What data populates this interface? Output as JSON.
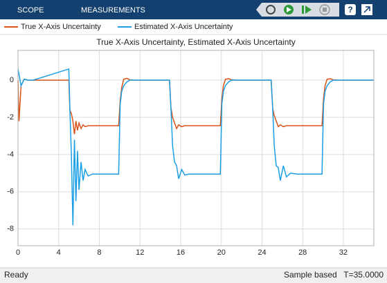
{
  "toolbar": {
    "tabs": [
      "SCOPE",
      "MEASUREMENTS"
    ]
  },
  "chart_data": {
    "type": "line",
    "title": "True X-Axis Uncertainty, Estimated X-Axis Uncertainty",
    "x": [
      0,
      0.1,
      0.3,
      0.6,
      1,
      1.5,
      5,
      5.1,
      5.25,
      5.4,
      5.55,
      5.7,
      5.85,
      6.0,
      6.2,
      6.4,
      6.6,
      6.9,
      7.3,
      8,
      9.9,
      10.05,
      10.2,
      10.4,
      10.7,
      11,
      11.5,
      14.9,
      15.05,
      15.2,
      15.4,
      15.6,
      15.8,
      16.1,
      16.4,
      16.8,
      17.5,
      19.9,
      20.05,
      20.2,
      20.4,
      20.7,
      21,
      21.5,
      24.9,
      25.05,
      25.2,
      25.4,
      25.6,
      25.8,
      26.1,
      26.4,
      26.8,
      27.5,
      29.9,
      30.05,
      30.2,
      30.4,
      30.7,
      31,
      31.5,
      35
    ],
    "series": [
      {
        "name": "True X-Axis Uncertainty",
        "color": "#d95319",
        "values": [
          0,
          -2.2,
          -0.3,
          0.05,
          0,
          0,
          0,
          -1.6,
          -1.8,
          -2.2,
          -2.9,
          -2.2,
          -2.7,
          -2.3,
          -2.6,
          -2.4,
          -2.5,
          -2.45,
          -2.45,
          -2.45,
          -2.45,
          -1.1,
          -0.4,
          0.05,
          0.1,
          0.02,
          0,
          0,
          -1.5,
          -2.0,
          -2.3,
          -2.6,
          -2.4,
          -2.5,
          -2.45,
          -2.45,
          -2.45,
          -2.45,
          -1.0,
          -0.3,
          0.05,
          0.08,
          0.02,
          0,
          0,
          -1.5,
          -1.9,
          -2.2,
          -2.5,
          -2.4,
          -2.5,
          -2.45,
          -2.45,
          -2.45,
          -2.45,
          -1.0,
          -0.3,
          0.05,
          0.08,
          0.02,
          0,
          0
        ]
      },
      {
        "name": "Estimated X-Axis Uncertainty",
        "color": "#1a9fe6",
        "values": [
          0.6,
          0.3,
          -0.3,
          0.05,
          0,
          0,
          0.6,
          -1.5,
          -4.0,
          -7.8,
          -3.2,
          -6.5,
          -3.8,
          -5.9,
          -4.4,
          -5.4,
          -4.8,
          -5.15,
          -5.05,
          -5.05,
          -5.05,
          -1.3,
          -0.6,
          -0.3,
          -0.1,
          0,
          0,
          0,
          -1.6,
          -3.5,
          -4.4,
          -4.6,
          -5.3,
          -4.8,
          -5.1,
          -5.05,
          -5.05,
          -5.05,
          -1.3,
          -0.6,
          -0.3,
          -0.1,
          0,
          0,
          0,
          -1.5,
          -3.5,
          -4.6,
          -4.7,
          -5.4,
          -4.6,
          -5.2,
          -5.0,
          -5.05,
          -5.05,
          -1.3,
          -0.6,
          -0.3,
          -0.1,
          0,
          0,
          0
        ]
      }
    ],
    "xlim": [
      0,
      35
    ],
    "xticks": [
      0,
      4,
      8,
      12,
      16,
      20,
      24,
      28,
      32
    ],
    "ylim": [
      -8.9,
      1.6
    ],
    "yticks": [
      -8,
      -6,
      -4,
      -2,
      0
    ],
    "grid": true
  },
  "status_bar": {
    "status": "Ready",
    "mode": "Sample based",
    "time": "T=35.0000"
  }
}
